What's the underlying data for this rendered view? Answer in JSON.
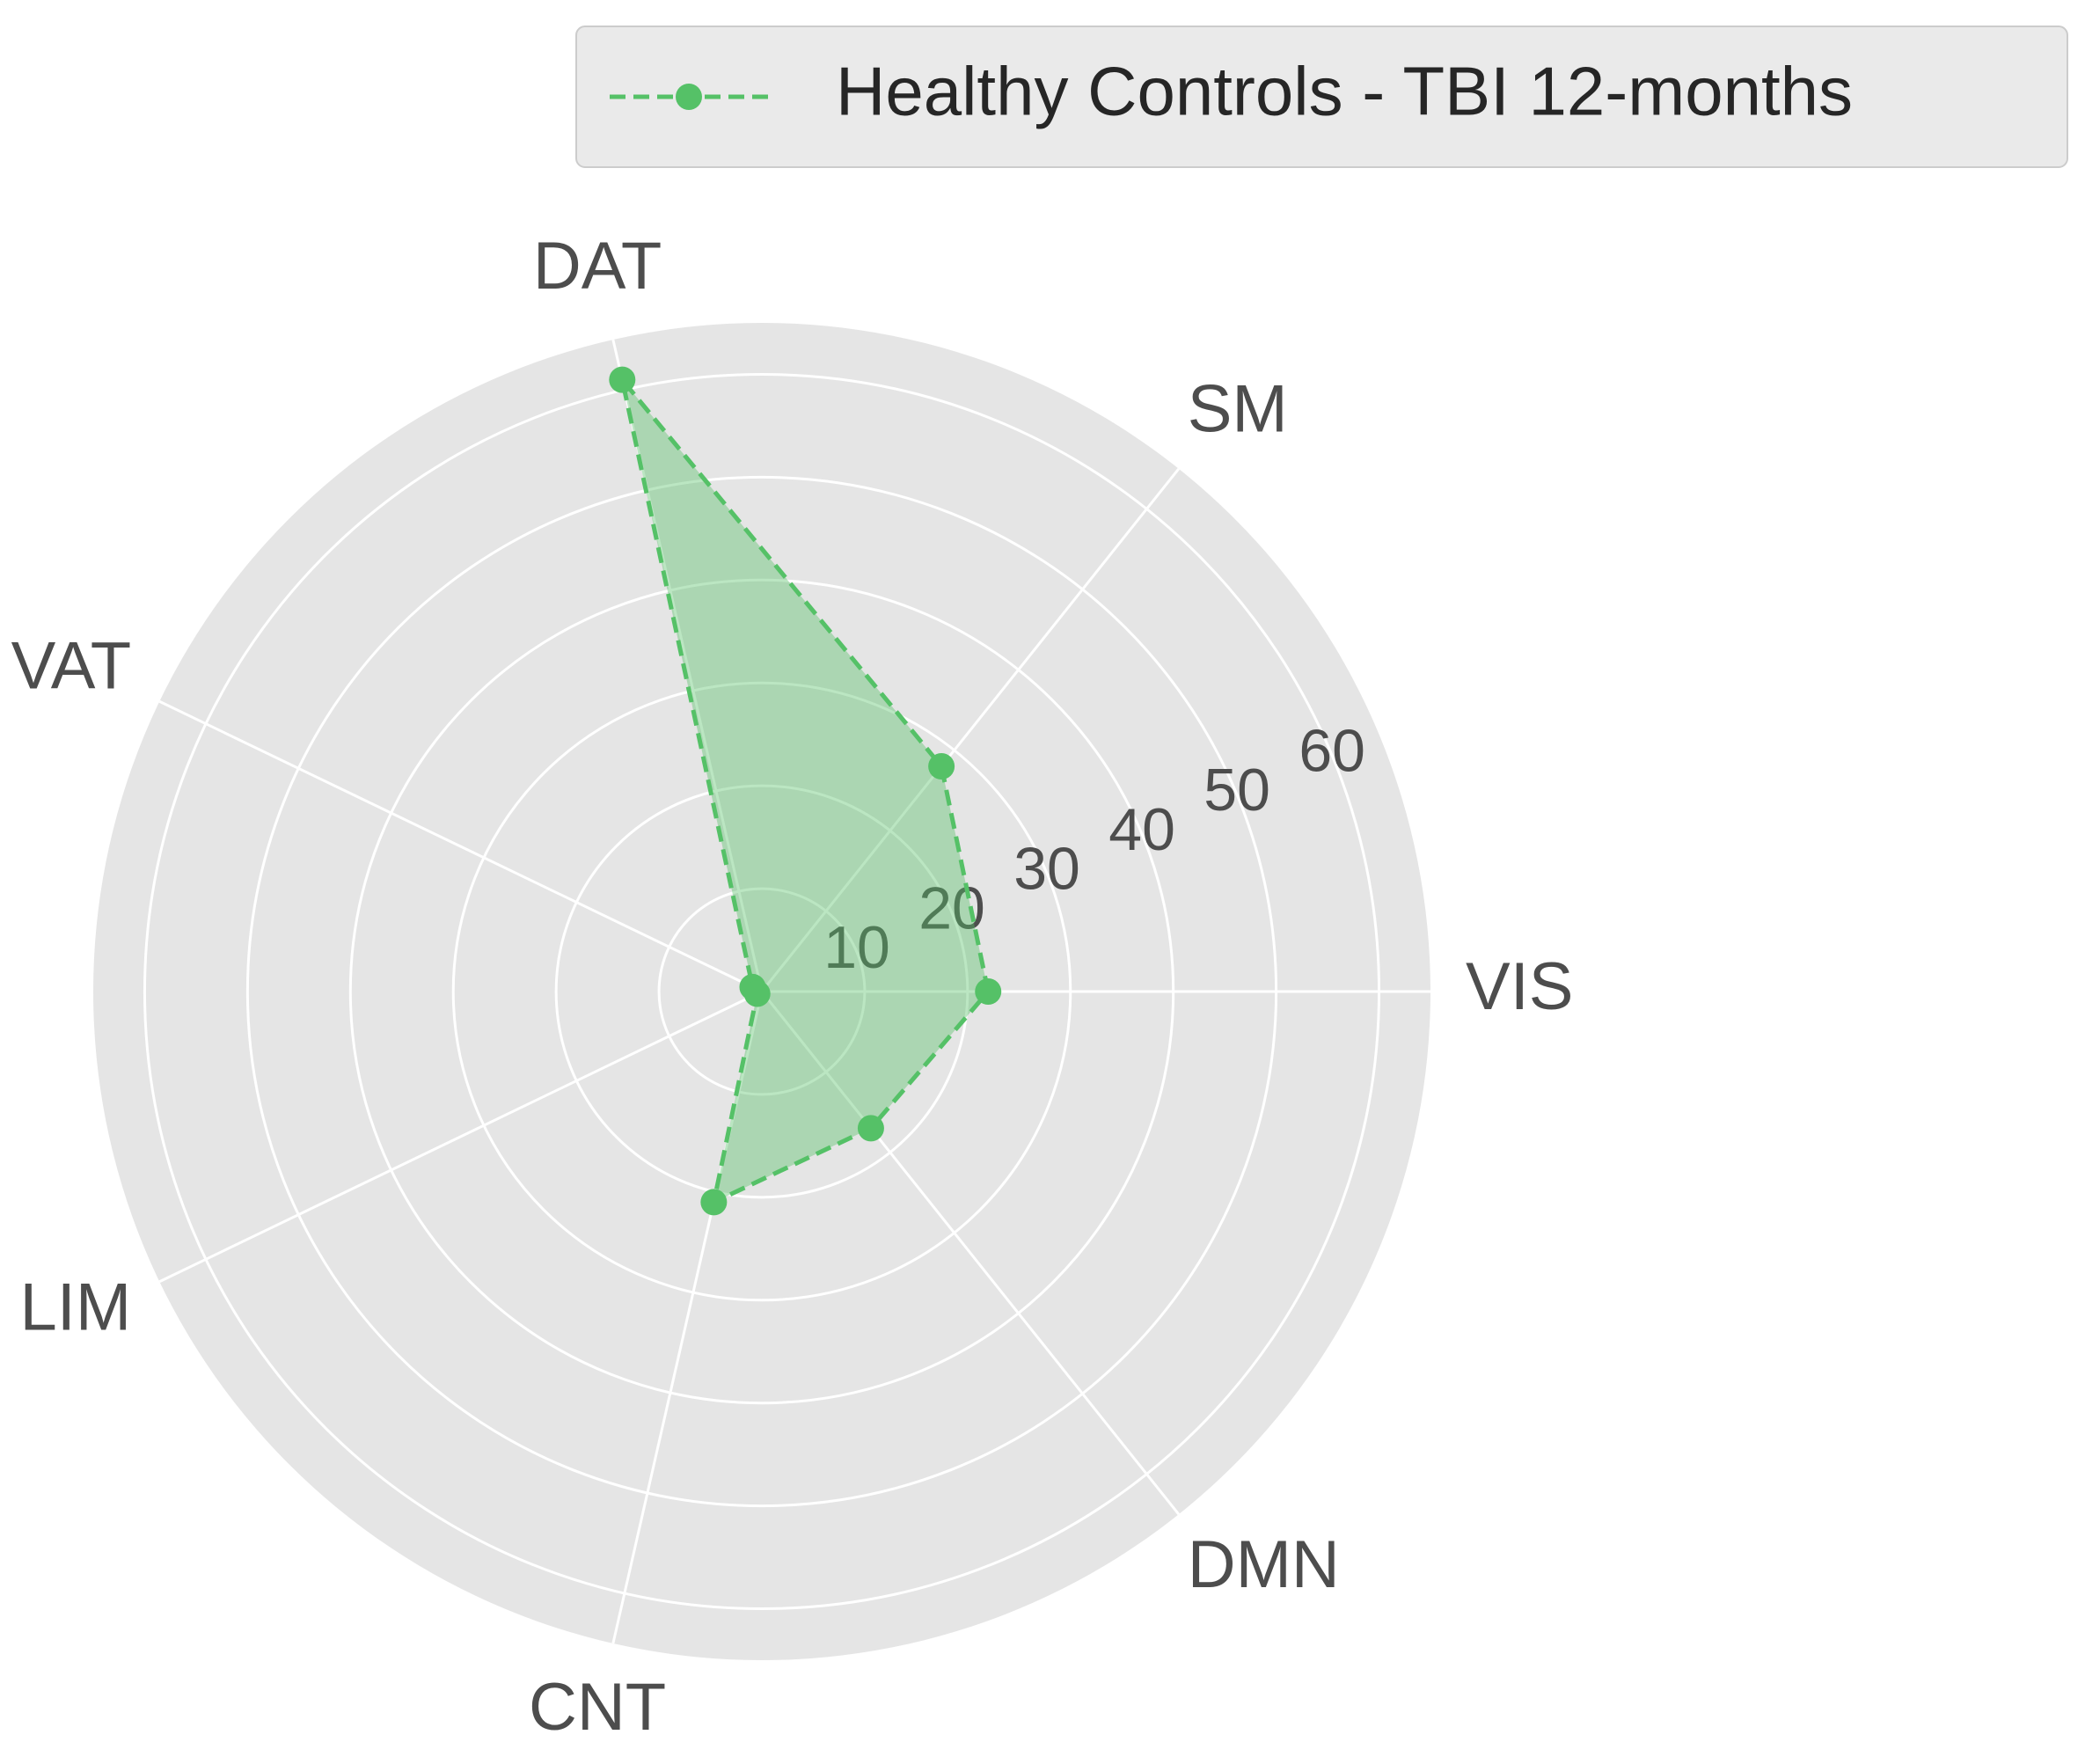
{
  "chart_data": {
    "type": "radar",
    "categories": [
      "VIS",
      "SM",
      "DAT",
      "VAT",
      "LIM",
      "CNT",
      "DMN"
    ],
    "series": [
      {
        "name": "Healthy Controls - TBI 12-months",
        "values": [
          22,
          28,
          61,
          1,
          0.5,
          21,
          17
        ]
      }
    ],
    "rticks": [
      10,
      20,
      30,
      40,
      50,
      60
    ],
    "rlim": [
      0,
      65
    ],
    "grid": true,
    "legend_position": "top-right",
    "colors": {
      "series": "#55c167",
      "fill": "#55c167",
      "background": "#e5e5e5",
      "grid": "#ffffff",
      "legend_bg": "#eaeaea",
      "legend_border": "#cccccc"
    }
  }
}
